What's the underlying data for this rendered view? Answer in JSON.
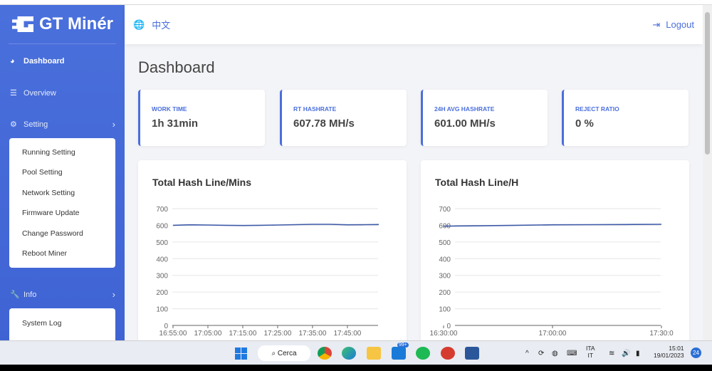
{
  "brand": "GT Minér",
  "header": {
    "language": "中文",
    "logout": "Logout"
  },
  "sidebar": {
    "items": [
      {
        "label": "Dashboard",
        "icon": "gauge-icon",
        "active": true
      },
      {
        "label": "Overview",
        "icon": "list-icon"
      },
      {
        "label": "Setting",
        "icon": "gear-icon"
      },
      {
        "label": "Info",
        "icon": "wrench-icon"
      }
    ],
    "setting_submenu": [
      "Running Setting",
      "Pool Setting",
      "Network Setting",
      "Firmware Update",
      "Change Password",
      "Reboot Miner"
    ],
    "info_submenu": [
      "System Log"
    ]
  },
  "page_title": "Dashboard",
  "cards": [
    {
      "label": "WORK TIME",
      "value": "1h 31min"
    },
    {
      "label": "RT HASHRATE",
      "value": "607.78 MH/s"
    },
    {
      "label": "24H AVG HASHRATE",
      "value": "601.00 MH/s"
    },
    {
      "label": "REJECT RATIO",
      "value": "0 %"
    }
  ],
  "colors": {
    "accent": "#4a6fdc",
    "line": "#3d5aa8"
  },
  "chart_data": [
    {
      "type": "line",
      "title": "Total Hash Line/Mins",
      "ylim": [
        0,
        700
      ],
      "yticks": [
        0,
        100,
        200,
        300,
        400,
        500,
        600,
        700
      ],
      "xticks": [
        "16:55:00",
        "17:05:00",
        "17:15:00",
        "17:25:00",
        "17:35:00",
        "17:45:00"
      ],
      "x": [
        "16:55",
        "17:00",
        "17:05",
        "17:10",
        "17:15",
        "17:20",
        "17:25",
        "17:30",
        "17:35",
        "17:40",
        "17:45",
        "17:50",
        "17:54"
      ],
      "values": [
        600,
        603,
        602,
        600,
        599,
        600,
        602,
        604,
        606,
        606,
        603,
        604,
        605
      ],
      "grid": true
    },
    {
      "type": "line",
      "title": "Total Hash Line/H",
      "ylim": [
        0,
        700
      ],
      "yticks": [
        0,
        100,
        200,
        300,
        400,
        500,
        600,
        700
      ],
      "xticks": [
        "16:30:00",
        "17:00:00",
        "17:30:0"
      ],
      "x": [
        "16:30",
        "16:40",
        "16:50",
        "17:00",
        "17:10",
        "17:20",
        "17:30"
      ],
      "values": [
        595,
        597,
        600,
        603,
        604,
        605,
        606
      ],
      "grid": true
    }
  ],
  "taskbar": {
    "search": "Cerca",
    "mail_badge": "99+",
    "lang": [
      "ITA",
      "IT"
    ],
    "time": "15:01",
    "date": "19/01/2023",
    "notifications": "24"
  }
}
